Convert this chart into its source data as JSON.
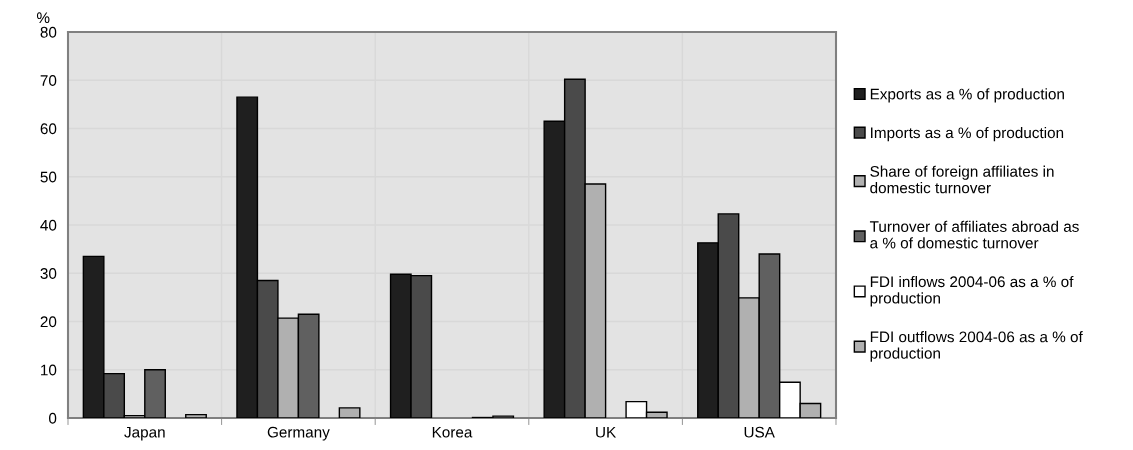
{
  "chart_data": {
    "type": "bar",
    "ylabel": "%",
    "categories": [
      "Japan",
      "Germany",
      "Korea",
      "UK",
      "USA"
    ],
    "series": [
      {
        "name": "Exports as a % of production",
        "color": "#1f1f1f",
        "values": [
          33.5,
          66.5,
          29.8,
          61.5,
          36.3
        ]
      },
      {
        "name": "Imports as a % of production",
        "color": "#4a4a4a",
        "values": [
          9.2,
          28.5,
          29.5,
          70.2,
          42.3
        ]
      },
      {
        "name": "Share of foreign affiliates in\ndomestic turnover",
        "color": "#b0b0b0",
        "values": [
          0.5,
          20.7,
          null,
          48.5,
          24.9
        ]
      },
      {
        "name": "Turnover of affiliates abroad as\na % of domestic turnover",
        "color": "#606060",
        "values": [
          10.0,
          21.5,
          null,
          null,
          34.0
        ]
      },
      {
        "name": "FDI inflows 2004-06 as a % of\nproduction",
        "color": "#ffffff",
        "values": [
          null,
          null,
          0.1,
          3.4,
          7.4
        ]
      },
      {
        "name": "FDI outflows 2004-06 as a % of\nproduction",
        "color": "#b0b0b0",
        "values": [
          0.7,
          2.1,
          0.4,
          1.2,
          3.0
        ]
      }
    ],
    "ylim": [
      0,
      80
    ],
    "yticks": [
      0,
      10,
      20,
      30,
      40,
      50,
      60,
      70,
      80
    ],
    "grid": true,
    "legend": "right"
  }
}
